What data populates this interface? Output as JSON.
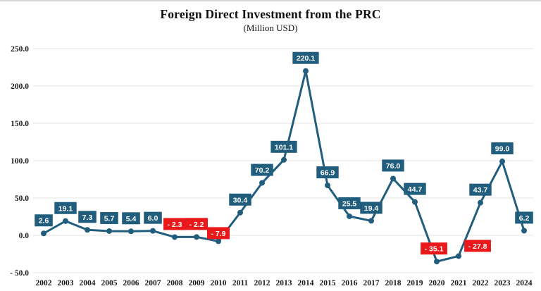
{
  "chart_data": {
    "type": "line",
    "title": "Foreign Direct Investment from the PRC",
    "subtitle": "(Million USD)",
    "categories": [
      "2002",
      "2003",
      "2004",
      "2005",
      "2006",
      "2007",
      "2008",
      "2009",
      "2010",
      "2011",
      "2012",
      "2013",
      "2014",
      "2015",
      "2016",
      "2017",
      "2018",
      "2019",
      "2020",
      "2021",
      "2022",
      "2023",
      "2024"
    ],
    "values": [
      2.6,
      19.1,
      7.3,
      5.7,
      5.4,
      6.0,
      -2.3,
      -2.2,
      -7.9,
      30.4,
      70.2,
      101.1,
      220.1,
      66.9,
      25.5,
      19.4,
      76.0,
      44.7,
      -35.1,
      -27.8,
      43.7,
      99.0,
      6.2
    ],
    "data_labels": [
      "2.6",
      "19.1",
      "7.3",
      "5.7",
      "5.4",
      "6.0",
      "- 2.3",
      "- 2.2",
      "- 7.9",
      "30.4",
      "70.2",
      "101.1",
      "220.1",
      "66.9",
      "25.5",
      "19.4",
      "76.0",
      "44.7",
      "- 35.1",
      "- 27.8",
      "43.7",
      "99.0",
      "6.2"
    ],
    "xlabel": "",
    "ylabel": "",
    "ylim": [
      -50,
      250
    ],
    "yticks": [
      {
        "v": 250,
        "label": "250.0"
      },
      {
        "v": 200,
        "label": "200.0"
      },
      {
        "v": 150,
        "label": "150.0"
      },
      {
        "v": 100,
        "label": "100.0"
      },
      {
        "v": 50,
        "label": "50.0"
      },
      {
        "v": 0,
        "label": "0.0"
      },
      {
        "v": -50,
        "label": "- 50.0"
      }
    ],
    "grid": "horizontal",
    "legend": "none",
    "colors": {
      "line": "#215e7d",
      "marker": "#215e7d",
      "positive_label_bg": "#215e7d",
      "negative_label_bg": "#e8181b",
      "label_text": "#ffffff",
      "gridline": "#e4e4e4",
      "axis_text": "#1a1a1a"
    },
    "label_offsets": {
      "2010": {
        "dx": 0,
        "dy": 7
      },
      "2020": {
        "dx": -4,
        "dy": 0
      },
      "2021": {
        "dx": 27,
        "dy": 4
      }
    }
  }
}
